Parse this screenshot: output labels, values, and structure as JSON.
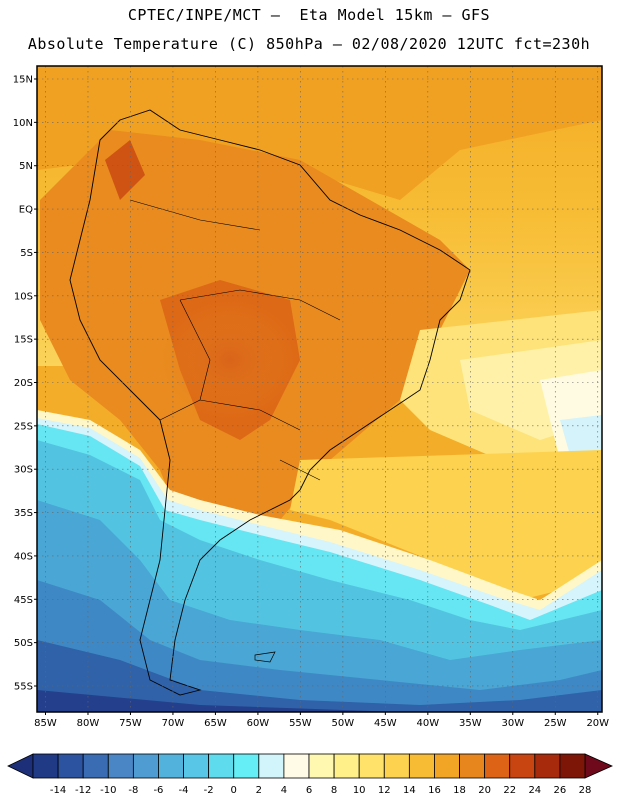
{
  "header": {
    "line1": "CPTEC/INPE/MCT –  Eta Model 15km – GFS",
    "line2": "Absolute Temperature (C) 850hPa – 02/08/2020 12UTC fct=230h"
  },
  "map": {
    "lat_labels": [
      "15N",
      "10N",
      "5N",
      "EQ",
      "5S",
      "10S",
      "15S",
      "20S",
      "25S",
      "30S",
      "35S",
      "40S",
      "45S",
      "50S",
      "55S"
    ],
    "lon_labels": [
      "85W",
      "80W",
      "75W",
      "70W",
      "65W",
      "60W",
      "55W",
      "50W",
      "45W",
      "40W",
      "35W",
      "30W",
      "25W",
      "20W"
    ],
    "lat_values": [
      15,
      10,
      5,
      0,
      -5,
      -10,
      -15,
      -20,
      -25,
      -30,
      -35,
      -40,
      -45,
      -50,
      -55
    ],
    "lon_values": [
      -85,
      -80,
      -75,
      -70,
      -65,
      -60,
      -55,
      -50,
      -45,
      -40,
      -35,
      -30,
      -25,
      -20
    ],
    "lat_range": [
      -58,
      16.5
    ],
    "lon_range": [
      -86,
      -19.5
    ],
    "grid": "dotted"
  },
  "colorbar": {
    "labels": [
      "-14",
      "-12",
      "-10",
      "-8",
      "-6",
      "-4",
      "-2",
      "0",
      "2",
      "4",
      "6",
      "8",
      "10",
      "12",
      "14",
      "16",
      "18",
      "20",
      "22",
      "24",
      "26",
      "28"
    ],
    "colors": [
      "#203a86",
      "#2c53a0",
      "#3a6cb4",
      "#4a86c6",
      "#4e9cd2",
      "#52b2dc",
      "#58c6e6",
      "#5edced",
      "#66eef6",
      "#d2f4fb",
      "#fffbe6",
      "#fff8b0",
      "#fff08a",
      "#ffe26a",
      "#fdd24e",
      "#f8bc34",
      "#f2a425",
      "#e8861e",
      "#dd6416",
      "#c84410",
      "#a82a0c",
      "#7e1608"
    ],
    "low_color": "#1c2f78",
    "high_color": "#6e0a1c"
  }
}
